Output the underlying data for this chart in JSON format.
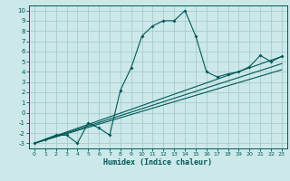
{
  "xlabel": "Humidex (Indice chaleur)",
  "bg_color": "#cce8e8",
  "grid_color": "#aacccc",
  "line_color": "#005858",
  "xlim": [
    -0.5,
    23.5
  ],
  "ylim": [
    -3.5,
    10.5
  ],
  "xticks": [
    0,
    1,
    2,
    3,
    4,
    5,
    6,
    7,
    8,
    9,
    10,
    11,
    12,
    13,
    14,
    15,
    16,
    17,
    18,
    19,
    20,
    21,
    22,
    23
  ],
  "yticks": [
    -3,
    -2,
    -1,
    0,
    1,
    2,
    3,
    4,
    5,
    6,
    7,
    8,
    9,
    10
  ],
  "curve_x": [
    0,
    1,
    2,
    3,
    4,
    5,
    6,
    7,
    8,
    9,
    10,
    11,
    12,
    13,
    14,
    15,
    16,
    17,
    18,
    19,
    20,
    21,
    22,
    23
  ],
  "curve_y": [
    -3,
    -2.6,
    -2.2,
    -2.2,
    -3.0,
    -1.0,
    -1.5,
    -2.2,
    2.2,
    4.4,
    7.5,
    8.5,
    9.0,
    9.0,
    10.0,
    7.5,
    4.0,
    3.5,
    3.8,
    4.0,
    4.5,
    5.6,
    5.0,
    5.5
  ],
  "straight_lines": [
    [
      [
        0,
        23
      ],
      [
        -3,
        5.5
      ]
    ],
    [
      [
        0,
        23
      ],
      [
        -3,
        4.8
      ]
    ],
    [
      [
        0,
        23
      ],
      [
        -3,
        4.2
      ]
    ]
  ]
}
